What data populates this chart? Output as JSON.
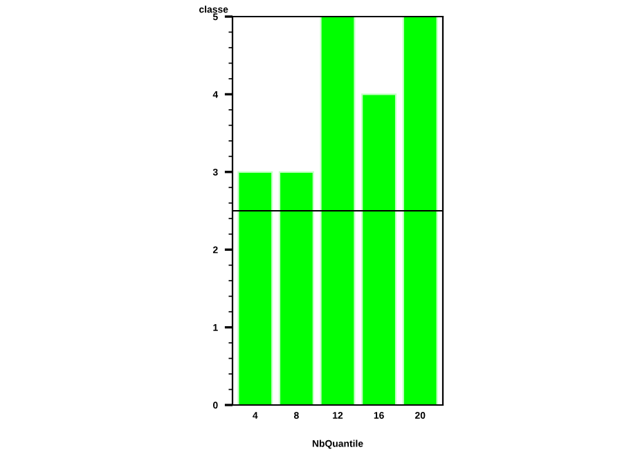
{
  "chart_data": {
    "type": "bar",
    "ylabel": "classe",
    "xlabel": "NbQuantile",
    "categories": [
      "4",
      "8",
      "12",
      "16",
      "20"
    ],
    "values": [
      3,
      3,
      5,
      4,
      5
    ],
    "color": "#00ff00",
    "ylim": [
      0,
      5
    ],
    "yticks": [
      0,
      1,
      2,
      3,
      4,
      5
    ],
    "grid": false,
    "legend": false,
    "ref_lines": [
      {
        "axis": "y",
        "value": 2.5,
        "color": "#000000"
      }
    ]
  }
}
